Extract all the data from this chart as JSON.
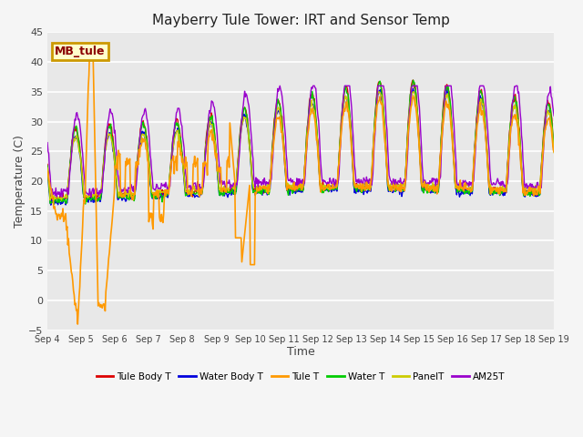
{
  "title": "Mayberry Tule Tower: IRT and Sensor Temp",
  "xlabel": "Time",
  "ylabel": "Temperature (C)",
  "ylim": [
    -5,
    45
  ],
  "yticks": [
    -5,
    0,
    5,
    10,
    15,
    20,
    25,
    30,
    35,
    40,
    45
  ],
  "xtick_labels": [
    "Sep 4",
    "Sep 5",
    "Sep 6",
    "Sep 7",
    "Sep 8",
    "Sep 9",
    "Sep 10",
    "Sep 11",
    "Sep 12",
    "Sep 13",
    "Sep 14",
    "Sep 15",
    "Sep 16",
    "Sep 17",
    "Sep 18",
    "Sep 19"
  ],
  "series": {
    "Tule Body T": {
      "color": "#dd0000",
      "lw": 1.0
    },
    "Water Body T": {
      "color": "#0000dd",
      "lw": 1.0
    },
    "Tule T": {
      "color": "#ff9900",
      "lw": 1.2
    },
    "Water T": {
      "color": "#00cc00",
      "lw": 1.0
    },
    "PanelT": {
      "color": "#cccc00",
      "lw": 1.0
    },
    "AM25T": {
      "color": "#9900cc",
      "lw": 1.0
    }
  },
  "legend_label": "MB_tule",
  "legend_border_color": "#cc9900",
  "legend_bg": "#ffffcc",
  "legend_text_color": "#8B0000",
  "plot_bg": "#e8e8e8",
  "fig_bg": "#f5f5f5",
  "grid_color": "#ffffff",
  "title_fontsize": 11,
  "axis_label_fontsize": 9,
  "tick_fontsize": 8
}
